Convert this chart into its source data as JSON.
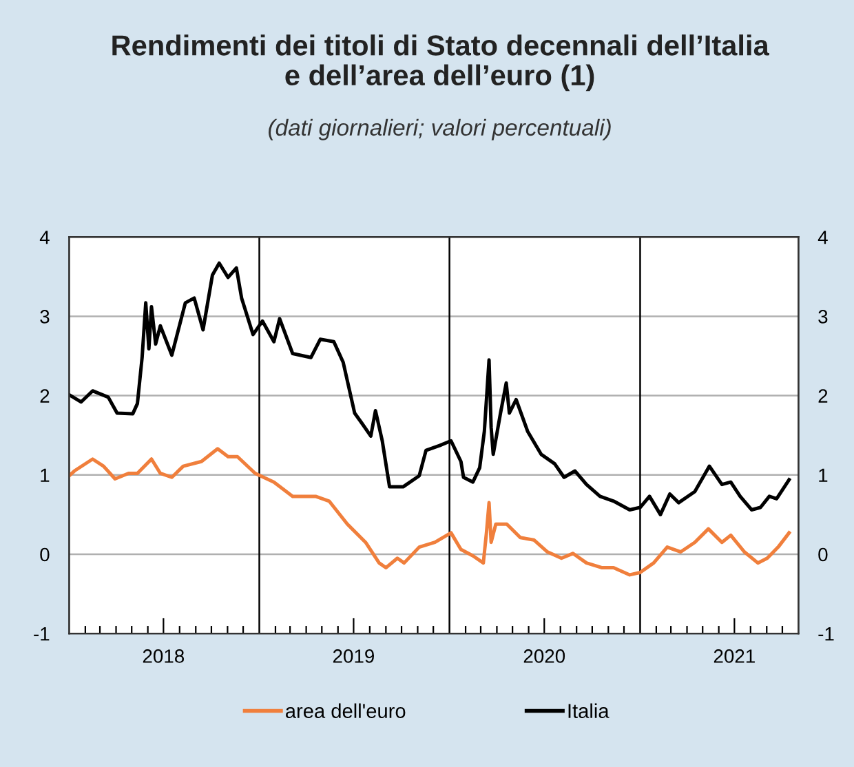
{
  "chart_data": {
    "type": "line",
    "title": "Rendimenti dei titoli di Stato decennali dell’Italia\ne dell’area dell’euro (1)",
    "subtitle": "(dati giornalieri; valori percentuali)",
    "series": [
      {
        "name": "area dell'euro",
        "color": "#f07f3c",
        "x": [
          "2018-01-01",
          "2018-01-11",
          "2018-02-15",
          "2018-03-08",
          "2018-03-30",
          "2018-04-25",
          "2018-05-12",
          "2018-06-08",
          "2018-06-25",
          "2018-07-17",
          "2018-08-08",
          "2018-09-12",
          "2018-10-13",
          "2018-11-02",
          "2018-11-20",
          "2018-12-24",
          "2019-01-29",
          "2019-03-06",
          "2019-04-19",
          "2019-05-15",
          "2019-06-19",
          "2019-07-24",
          "2019-08-19",
          "2019-09-01",
          "2019-09-23",
          "2019-10-06",
          "2019-11-04",
          "2019-12-04",
          "2020-01-04",
          "2020-01-23",
          "2020-02-15",
          "2020-03-06",
          "2020-03-12",
          "2020-03-17",
          "2020-03-21",
          "2020-03-30",
          "2020-04-20",
          "2020-05-16",
          "2020-06-11",
          "2020-07-07",
          "2020-08-03",
          "2020-08-25",
          "2020-09-20",
          "2020-10-20",
          "2020-11-11",
          "2020-12-12",
          "2021-01-01",
          "2021-01-27",
          "2021-02-22",
          "2021-03-20",
          "2021-04-16",
          "2021-05-12",
          "2021-06-07",
          "2021-06-24",
          "2021-07-20",
          "2021-08-15",
          "2021-09-02",
          "2021-09-23",
          "2021-10-14"
        ],
        "values": [
          0.99,
          1.05,
          1.2,
          1.11,
          0.95,
          1.02,
          1.02,
          1.2,
          1.02,
          0.97,
          1.11,
          1.17,
          1.33,
          1.23,
          1.23,
          1.02,
          0.91,
          0.73,
          0.73,
          0.67,
          0.38,
          0.15,
          -0.11,
          -0.17,
          -0.05,
          -0.11,
          0.09,
          0.15,
          0.27,
          0.06,
          -0.02,
          -0.11,
          0.27,
          0.65,
          0.15,
          0.38,
          0.38,
          0.21,
          0.18,
          0.03,
          -0.05,
          0.01,
          -0.11,
          -0.17,
          -0.17,
          -0.26,
          -0.23,
          -0.11,
          0.09,
          0.03,
          0.15,
          0.32,
          0.15,
          0.24,
          0.03,
          -0.11,
          -0.05,
          0.09,
          0.27
        ]
      },
      {
        "name": "Italia",
        "color": "#000000",
        "x": [
          "2018-01-01",
          "2018-01-24",
          "2018-02-15",
          "2018-03-17",
          "2018-04-03",
          "2018-05-03",
          "2018-05-12",
          "2018-05-21",
          "2018-05-28",
          "2018-06-03",
          "2018-06-08",
          "2018-06-16",
          "2018-06-25",
          "2018-07-17",
          "2018-08-12",
          "2018-08-29",
          "2018-09-15",
          "2018-10-03",
          "2018-10-16",
          "2018-11-02",
          "2018-11-18",
          "2018-11-28",
          "2018-12-20",
          "2019-01-07",
          "2019-01-29",
          "2019-02-09",
          "2019-03-06",
          "2019-04-10",
          "2019-04-28",
          "2019-05-24",
          "2019-06-11",
          "2019-07-03",
          "2019-07-16",
          "2019-08-03",
          "2019-08-12",
          "2019-08-25",
          "2019-09-08",
          "2019-10-04",
          "2019-11-04",
          "2019-11-17",
          "2019-12-13",
          "2020-01-04",
          "2020-01-23",
          "2020-01-28",
          "2020-02-15",
          "2020-02-28",
          "2020-03-08",
          "2020-03-17",
          "2020-03-21",
          "2020-03-25",
          "2020-04-08",
          "2020-04-19",
          "2020-04-25",
          "2020-05-08",
          "2020-05-30",
          "2020-06-25",
          "2020-07-21",
          "2020-08-08",
          "2020-08-29",
          "2020-09-20",
          "2020-10-16",
          "2020-11-11",
          "2020-12-12",
          "2021-01-01",
          "2021-01-19",
          "2021-02-09",
          "2021-02-27",
          "2021-03-16",
          "2021-04-16",
          "2021-05-14",
          "2021-06-07",
          "2021-06-24",
          "2021-07-12",
          "2021-08-03",
          "2021-08-20",
          "2021-09-06",
          "2021-09-20",
          "2021-10-14"
        ],
        "values": [
          2.01,
          1.92,
          2.06,
          1.98,
          1.78,
          1.77,
          1.9,
          2.48,
          3.17,
          2.59,
          3.12,
          2.65,
          2.88,
          2.51,
          3.17,
          3.23,
          2.83,
          3.52,
          3.67,
          3.49,
          3.61,
          3.23,
          2.77,
          2.94,
          2.68,
          2.97,
          2.53,
          2.48,
          2.71,
          2.68,
          2.42,
          1.78,
          1.66,
          1.49,
          1.81,
          1.43,
          0.85,
          0.85,
          0.99,
          1.31,
          1.37,
          1.43,
          1.17,
          0.97,
          0.91,
          1.09,
          1.55,
          2.45,
          1.6,
          1.26,
          1.78,
          2.16,
          1.78,
          1.95,
          1.55,
          1.26,
          1.14,
          0.97,
          1.05,
          0.88,
          0.73,
          0.67,
          0.56,
          0.59,
          0.73,
          0.5,
          0.76,
          0.65,
          0.79,
          1.11,
          0.88,
          0.91,
          0.73,
          0.56,
          0.59,
          0.73,
          0.7,
          0.94
        ]
      }
    ],
    "xlim": [
      "2018-01-01",
      "2021-11-01"
    ],
    "xticks": [
      {
        "value": "2018-02-01",
        "label": null
      },
      {
        "value": "2018-03-01",
        "label": null
      },
      {
        "value": "2018-04-01",
        "label": null
      },
      {
        "value": "2018-05-01",
        "label": null
      },
      {
        "value": "2018-06-01",
        "label": null
      },
      {
        "value": "2018-07-01",
        "label": "2018"
      },
      {
        "value": "2018-08-01",
        "label": null
      },
      {
        "value": "2018-09-01",
        "label": null
      },
      {
        "value": "2018-10-01",
        "label": null
      },
      {
        "value": "2018-11-01",
        "label": null
      },
      {
        "value": "2018-12-01",
        "label": null
      },
      {
        "value": "2019-02-01",
        "label": null
      },
      {
        "value": "2019-03-01",
        "label": null
      },
      {
        "value": "2019-04-01",
        "label": null
      },
      {
        "value": "2019-05-01",
        "label": null
      },
      {
        "value": "2019-06-01",
        "label": null
      },
      {
        "value": "2019-07-01",
        "label": "2019"
      },
      {
        "value": "2019-08-01",
        "label": null
      },
      {
        "value": "2019-09-01",
        "label": null
      },
      {
        "value": "2019-10-01",
        "label": null
      },
      {
        "value": "2019-11-01",
        "label": null
      },
      {
        "value": "2019-12-01",
        "label": null
      },
      {
        "value": "2020-02-01",
        "label": null
      },
      {
        "value": "2020-03-01",
        "label": null
      },
      {
        "value": "2020-04-01",
        "label": null
      },
      {
        "value": "2020-05-01",
        "label": null
      },
      {
        "value": "2020-06-01",
        "label": null
      },
      {
        "value": "2020-07-01",
        "label": "2020"
      },
      {
        "value": "2020-08-01",
        "label": null
      },
      {
        "value": "2020-09-01",
        "label": null
      },
      {
        "value": "2020-10-01",
        "label": null
      },
      {
        "value": "2020-11-01",
        "label": null
      },
      {
        "value": "2020-12-01",
        "label": null
      },
      {
        "value": "2021-02-01",
        "label": null
      },
      {
        "value": "2021-03-01",
        "label": null
      },
      {
        "value": "2021-04-01",
        "label": null
      },
      {
        "value": "2021-05-01",
        "label": null
      },
      {
        "value": "2021-06-01",
        "label": null
      },
      {
        "value": "2021-07-01",
        "label": "2021"
      },
      {
        "value": "2021-08-01",
        "label": null
      },
      {
        "value": "2021-09-01",
        "label": null
      },
      {
        "value": "2021-10-01",
        "label": null
      }
    ],
    "ylim": [
      -1,
      4
    ],
    "yticks": [
      -1,
      0,
      1,
      2,
      3,
      4
    ],
    "y2lim": [
      -1,
      4
    ],
    "y2ticks": [
      -1,
      0,
      1,
      2,
      3,
      4
    ],
    "ref_lines": [
      {
        "axis": "x",
        "value": "2019-01-01",
        "color": "#000000"
      },
      {
        "axis": "x",
        "value": "2020-01-01",
        "color": "#000000"
      },
      {
        "axis": "x",
        "value": "2021-01-01",
        "color": "#000000"
      }
    ],
    "grid": "y",
    "legend": "bottom",
    "marker": "none",
    "line_style": "solid"
  }
}
